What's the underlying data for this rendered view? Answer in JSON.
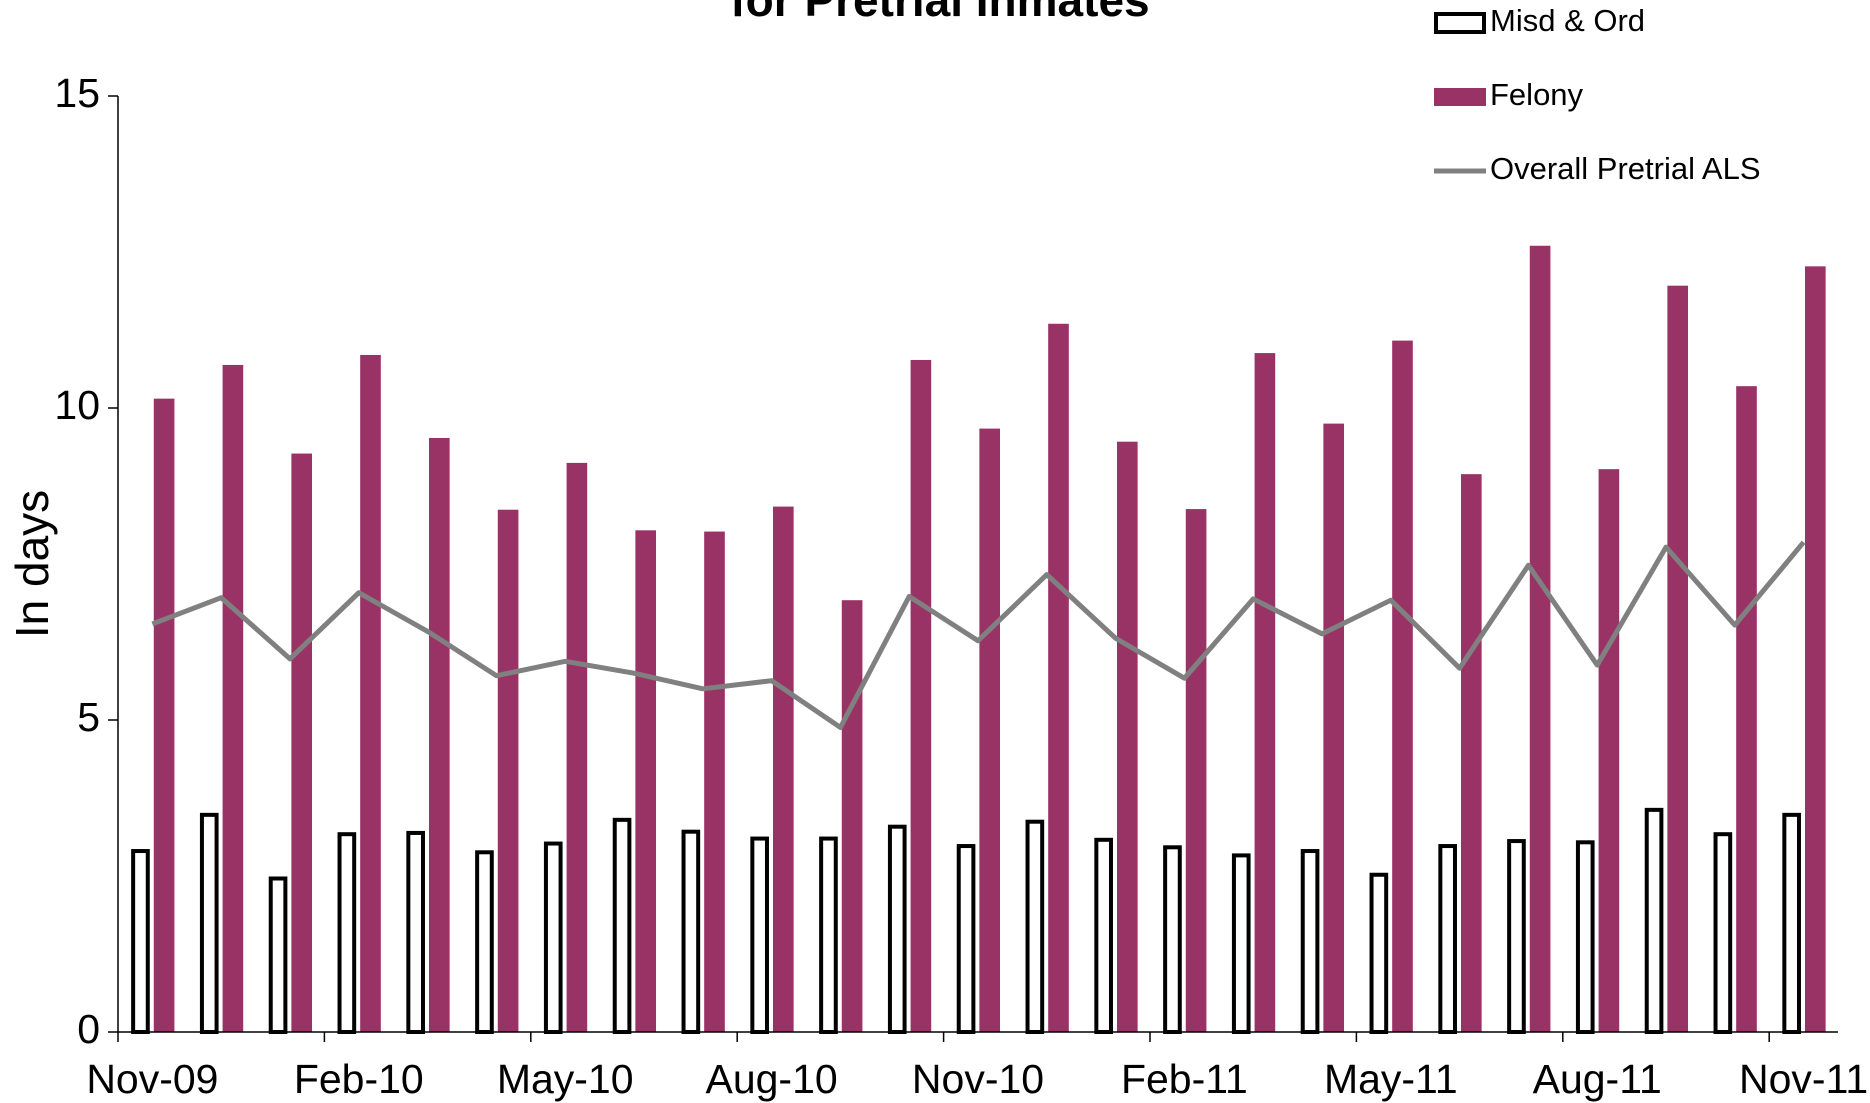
{
  "chart_data": {
    "type": "bar",
    "title": "for Pretrial Inmates",
    "y_label": "In days",
    "categories": [
      "Nov-09",
      null,
      null,
      "Feb-10",
      null,
      null,
      "May-10",
      null,
      null,
      "Aug-10",
      null,
      null,
      "Nov-10",
      null,
      null,
      "Feb-11",
      null,
      null,
      "May-11",
      null,
      null,
      "Aug-11",
      null,
      null,
      "Nov-11"
    ],
    "series": [
      {
        "name": "Misd & Ord",
        "type": "bar",
        "color": "#ffffff",
        "stroke": "#000000",
        "values": [
          2.9,
          3.48,
          2.46,
          3.17,
          3.19,
          2.88,
          3.02,
          3.4,
          3.21,
          3.1,
          3.1,
          3.29,
          2.98,
          3.37,
          3.08,
          2.96,
          2.83,
          2.9,
          2.52,
          2.98,
          3.06,
          3.04,
          3.56,
          3.17,
          3.48
        ]
      },
      {
        "name": "Felony",
        "type": "bar",
        "color": "#993366",
        "values": [
          10.15,
          10.69,
          9.27,
          10.85,
          9.52,
          8.37,
          9.12,
          8.04,
          8.02,
          8.42,
          6.92,
          10.77,
          9.67,
          11.35,
          9.46,
          8.38,
          10.88,
          9.75,
          11.08,
          8.94,
          12.6,
          9.02,
          11.96,
          10.35,
          12.27
        ]
      },
      {
        "name": "Overall Pretrial ALS",
        "type": "line",
        "color": "#808080",
        "values": [
          6.54,
          6.96,
          5.98,
          7.04,
          6.42,
          5.71,
          5.94,
          5.75,
          5.5,
          5.63,
          4.88,
          6.98,
          6.27,
          7.33,
          6.31,
          5.67,
          6.94,
          6.38,
          6.92,
          5.83,
          7.48,
          5.88,
          7.77,
          6.52,
          7.85
        ]
      }
    ],
    "ylim": [
      0,
      15
    ],
    "yticks": [
      0,
      5,
      10,
      15
    ],
    "grid": false,
    "legend": "top-right"
  }
}
